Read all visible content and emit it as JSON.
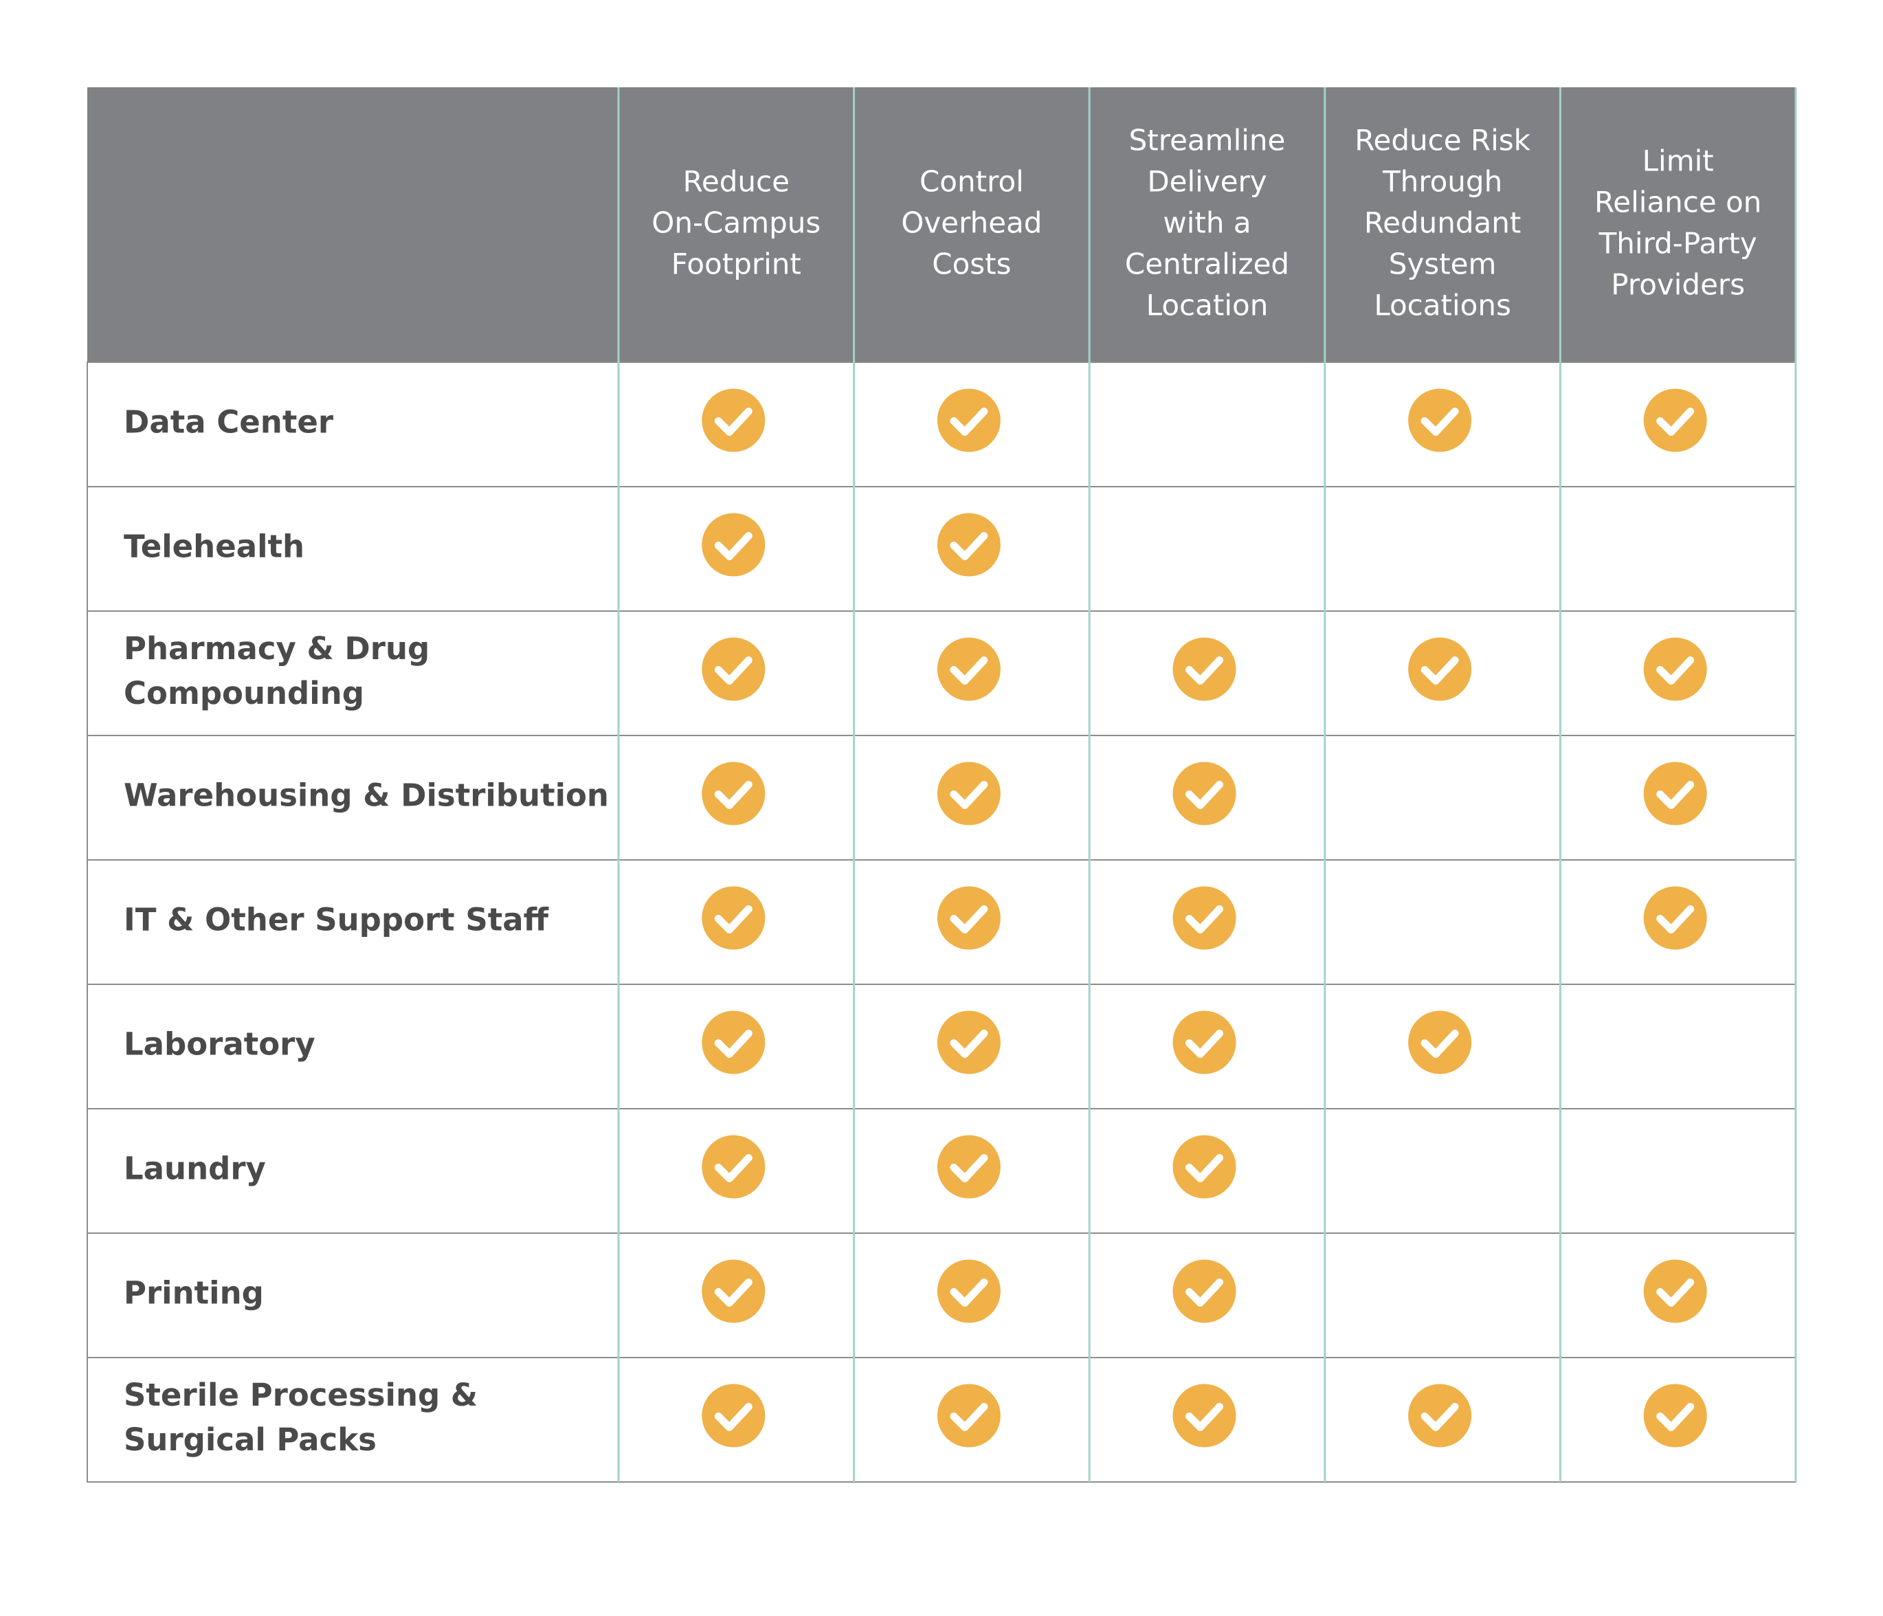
{
  "table": {
    "columns": [
      {
        "lines": [
          "Reduce",
          "On-Campus",
          "Footprint"
        ]
      },
      {
        "lines": [
          "Control",
          "Overhead",
          "Costs"
        ]
      },
      {
        "lines": [
          "Streamline",
          "Delivery",
          "with a",
          "Centralized",
          "Location"
        ]
      },
      {
        "lines": [
          "Reduce Risk",
          "Through",
          "Redundant",
          "System",
          "Locations"
        ]
      },
      {
        "lines": [
          "Limit",
          "Reliance on",
          "Third-Party",
          "Providers"
        ]
      }
    ],
    "rows": [
      {
        "lines": [
          "Data Center"
        ],
        "checks": [
          true,
          true,
          false,
          true,
          true
        ]
      },
      {
        "lines": [
          "Telehealth"
        ],
        "checks": [
          true,
          true,
          false,
          false,
          false
        ]
      },
      {
        "lines": [
          "Pharmacy & Drug",
          "Compounding"
        ],
        "checks": [
          true,
          true,
          true,
          true,
          true
        ]
      },
      {
        "lines": [
          "Warehousing & Distribution"
        ],
        "checks": [
          true,
          true,
          true,
          false,
          true
        ]
      },
      {
        "lines": [
          "IT & Other Support Staff"
        ],
        "checks": [
          true,
          true,
          true,
          false,
          true
        ]
      },
      {
        "lines": [
          "Laboratory"
        ],
        "checks": [
          true,
          true,
          true,
          true,
          false
        ]
      },
      {
        "lines": [
          "Laundry"
        ],
        "checks": [
          true,
          true,
          true,
          false,
          false
        ]
      },
      {
        "lines": [
          "Printing"
        ],
        "checks": [
          true,
          true,
          true,
          false,
          true
        ]
      },
      {
        "lines": [
          "Sterile Processing &",
          "Surgical Packs"
        ],
        "checks": [
          true,
          true,
          true,
          true,
          true
        ]
      }
    ]
  }
}
